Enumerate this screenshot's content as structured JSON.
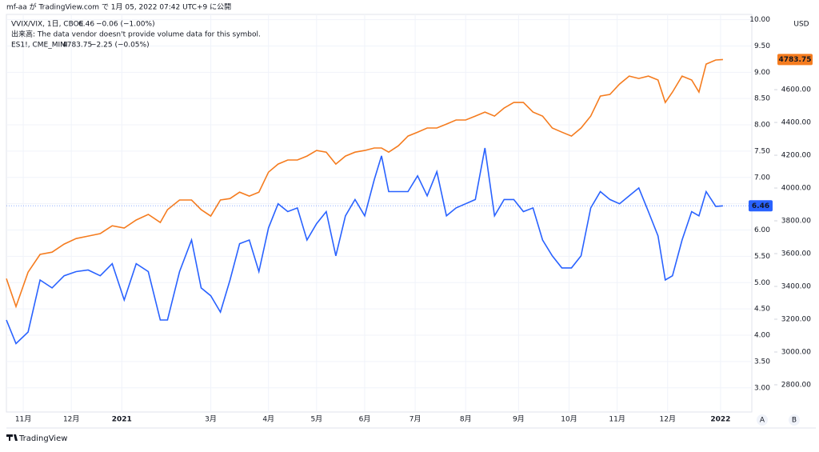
{
  "header": "mf-aa が TradingView.com で 1月 05, 2022 07:42 UTC+9 に公開",
  "footer": "TradingView",
  "buttons": [
    "A",
    "B"
  ],
  "chart_data": {
    "type": "line",
    "legend": [
      {
        "symbol": "VVIX/VIX, 1日, CBOE",
        "change": "−0.06 (−1.00%)"
      },
      {
        "symbol": "出来高: The data vendor doesn't provide volume data for this symbol."
      },
      {
        "symbol": "ES1!, CME_MINI",
        "change": "−2.25 (−0.05%)"
      }
    ],
    "currency": "USD",
    "x": [
      -7,
      -3,
      2,
      7,
      12,
      17,
      22,
      27,
      32,
      37,
      42,
      47,
      52,
      57,
      60,
      65,
      70,
      74,
      78,
      82,
      86,
      90,
      94,
      98,
      102,
      106,
      110,
      114,
      118,
      122,
      126,
      130,
      134,
      138,
      142,
      146,
      149,
      152,
      156,
      160,
      164,
      168,
      172,
      176,
      180,
      184,
      188,
      192,
      196,
      200,
      204,
      208,
      212,
      216,
      220,
      224,
      228,
      232,
      236,
      240,
      244,
      248,
      252,
      256,
      260,
      264,
      267,
      270,
      274,
      278,
      281,
      284,
      288,
      291
    ],
    "xlim": [
      -7,
      303
    ],
    "xticks": [
      {
        "value": 0,
        "label": "11月"
      },
      {
        "value": 20,
        "label": "12月"
      },
      {
        "value": 41,
        "label": "2021"
      },
      {
        "value": 78,
        "label": "3月"
      },
      {
        "value": 102,
        "label": "4月"
      },
      {
        "value": 122,
        "label": "5月"
      },
      {
        "value": 142,
        "label": "6月"
      },
      {
        "value": 163,
        "label": "7月"
      },
      {
        "value": 184,
        "label": "8月"
      },
      {
        "value": 206,
        "label": "9月"
      },
      {
        "value": 227,
        "label": "10月"
      },
      {
        "value": 247,
        "label": "11月"
      },
      {
        "value": 268,
        "label": "12月"
      },
      {
        "value": 290,
        "label": "2022"
      }
    ],
    "ylim": [
      2.54,
      10.1
    ],
    "yticks": [
      {
        "value": 3,
        "label": "3.00"
      },
      {
        "value": 3.5,
        "label": "3.50"
      },
      {
        "value": 4,
        "label": "4.00"
      },
      {
        "value": 4.5,
        "label": "4.50"
      },
      {
        "value": 5,
        "label": "5.00"
      },
      {
        "value": 5.5,
        "label": "5.50"
      },
      {
        "value": 6,
        "label": "6.00"
      },
      {
        "value": 6.5,
        "label": "6.50"
      },
      {
        "value": 7,
        "label": "7.00"
      },
      {
        "value": 7.5,
        "label": "7.50"
      },
      {
        "value": 8,
        "label": "8.00"
      },
      {
        "value": 8.5,
        "label": "8.50"
      },
      {
        "value": 9,
        "label": "9.00"
      },
      {
        "value": 9.5,
        "label": "9.50"
      },
      {
        "value": 10,
        "label": "10.00"
      }
    ],
    "y2lim": [
      2634,
      5059
    ],
    "y2ticks": [
      {
        "value": 2800,
        "label": "2800.00"
      },
      {
        "value": 3000,
        "label": "3000.00"
      },
      {
        "value": 3200,
        "label": "3200.00"
      },
      {
        "value": 3400,
        "label": "3400.00"
      },
      {
        "value": 3600,
        "label": "3600.00"
      },
      {
        "value": 3800,
        "label": "3800.00"
      },
      {
        "value": 4000,
        "label": "4000.00"
      },
      {
        "value": 4200,
        "label": "4200.00"
      },
      {
        "value": 4400,
        "label": "4400.00"
      },
      {
        "value": 4600,
        "label": "4600.00"
      }
    ],
    "grid": true,
    "series": [
      {
        "name": "VVIX/VIX",
        "color": "#2962ff",
        "values": [
          4.29,
          3.84,
          4.06,
          5.05,
          4.9,
          5.13,
          5.21,
          5.24,
          5.13,
          5.36,
          4.67,
          5.36,
          5.21,
          4.29,
          4.29,
          5.21,
          5.81,
          4.9,
          4.75,
          4.44,
          5.05,
          5.74,
          5.81,
          5.21,
          6.04,
          6.5,
          6.35,
          6.42,
          5.81,
          6.12,
          6.35,
          5.51,
          6.27,
          6.58,
          6.27,
          6.96,
          7.41,
          6.73,
          6.73,
          6.73,
          7.03,
          6.65,
          7.11,
          6.27,
          6.42,
          6.5,
          6.58,
          7.56,
          6.27,
          6.58,
          6.58,
          6.35,
          6.42,
          5.81,
          5.51,
          5.28,
          5.28,
          5.51,
          6.42,
          6.73,
          6.58,
          6.5,
          6.65,
          6.8,
          6.35,
          5.89,
          5.05,
          5.13,
          5.81,
          6.35,
          6.27,
          6.73,
          6.45,
          6.46
        ]
      },
      {
        "name": "ES1!",
        "color": "#f57c1f",
        "axis": "y2",
        "values": [
          3448,
          3277,
          3487,
          3595,
          3609,
          3658,
          3692,
          3707,
          3722,
          3770,
          3756,
          3805,
          3839,
          3790,
          3868,
          3927,
          3927,
          3868,
          3829,
          3927,
          3936,
          3975,
          3951,
          3975,
          4097,
          4146,
          4171,
          4171,
          4195,
          4229,
          4219,
          4146,
          4195,
          4219,
          4229,
          4244,
          4244,
          4219,
          4258,
          4317,
          4341,
          4366,
          4366,
          4390,
          4415,
          4415,
          4439,
          4463,
          4439,
          4488,
          4522,
          4522,
          4463,
          4439,
          4366,
          4341,
          4317,
          4366,
          4439,
          4561,
          4571,
          4634,
          4683,
          4668,
          4683,
          4659,
          4522,
          4585,
          4683,
          4659,
          4585,
          4756,
          4781,
          4783.75
        ]
      }
    ]
  }
}
